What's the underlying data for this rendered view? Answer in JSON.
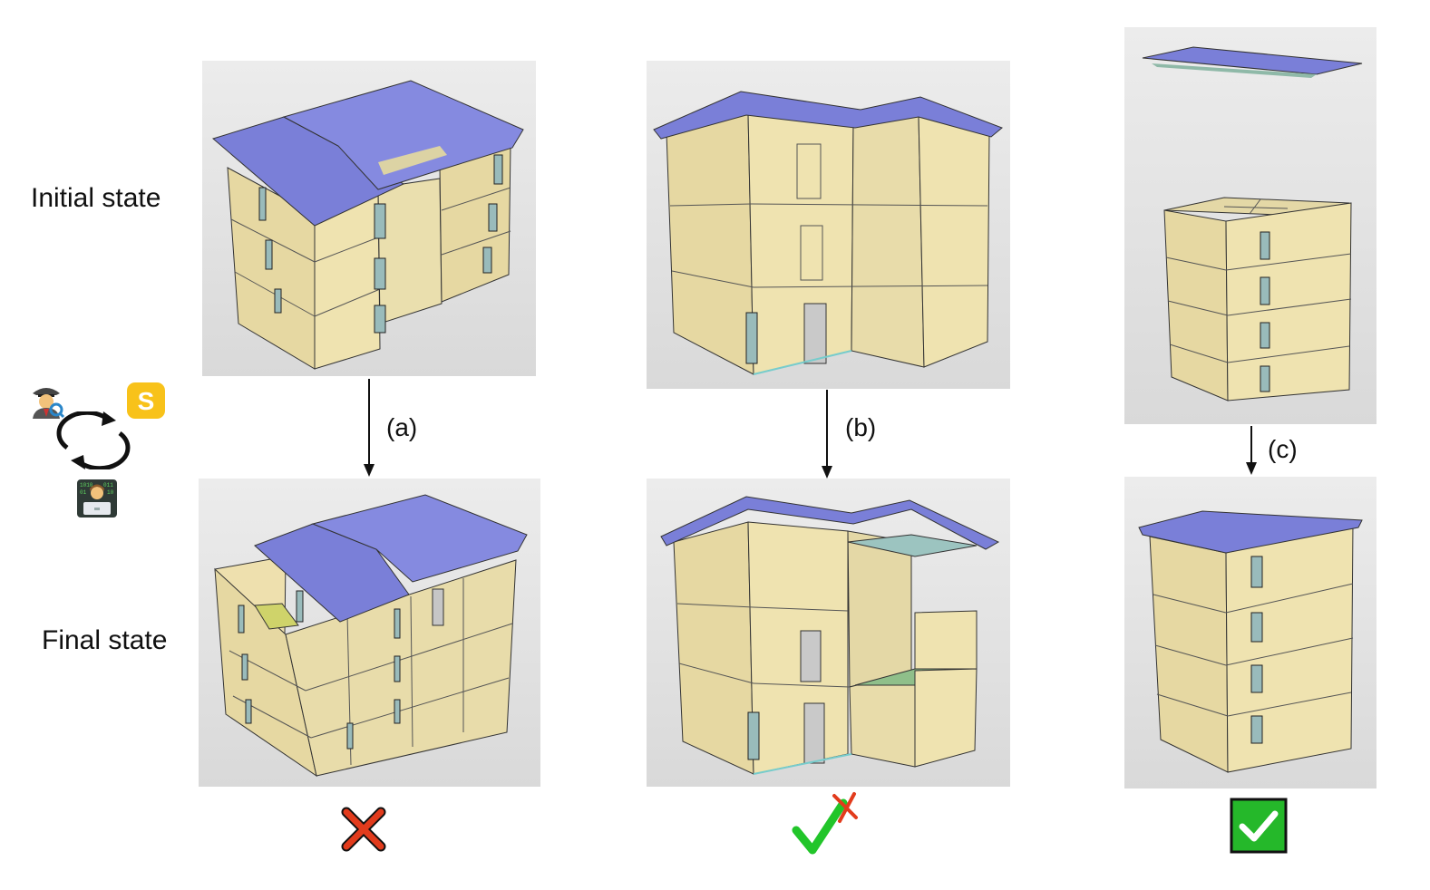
{
  "row_labels": {
    "initial": "Initial state",
    "final": "Final state"
  },
  "steps": [
    {
      "label": "(a)",
      "result": "cross-icon"
    },
    {
      "label": "(b)",
      "result": "partial-check-icon"
    },
    {
      "label": "(c)",
      "result": "check-box-icon"
    }
  ],
  "agent_icons": [
    "detective-icon",
    "s-logo-icon",
    "loop-arrows-icon",
    "coder-icon"
  ],
  "colors": {
    "roof": "#7a7fd8",
    "wall": "#e8dca8",
    "panel_bg": "#e2e2e2",
    "cross": "#e23b1c",
    "check": "#22c52a",
    "check_box": "#25b82a"
  }
}
